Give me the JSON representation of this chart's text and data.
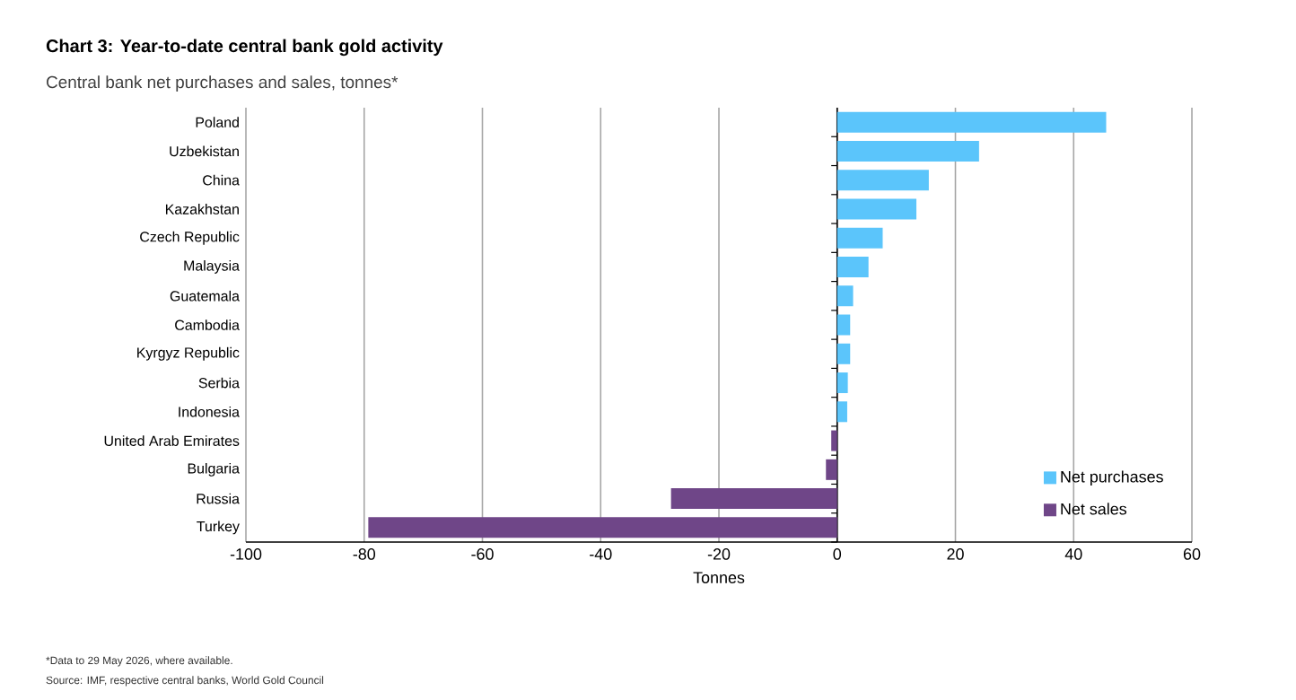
{
  "chart_data": {
    "type": "bar",
    "orientation": "horizontal",
    "title": "Chart 3: Year-to-date central bank gold activity",
    "subtitle": "Central bank net purchases and sales, tonnes*",
    "xlabel": "Tonnes",
    "categories": [
      "Poland",
      "Uzbekistan",
      "China",
      "Kazakhstan",
      "Czech Republic",
      "Malaysia",
      "Guatemala",
      "Cambodia",
      "Kyrgyz Republic",
      "Serbia",
      "Indonesia",
      "United Arab Emirates",
      "Bulgaria",
      "Russia",
      "Turkey"
    ],
    "series": [
      {
        "name": "Net purchases",
        "color": "#5bc5fb",
        "values": [
          45.5,
          24.0,
          15.5,
          13.4,
          7.7,
          5.3,
          2.7,
          2.2,
          2.2,
          1.8,
          1.7,
          null,
          null,
          null,
          null
        ]
      },
      {
        "name": "Net sales",
        "color": "#6f4688",
        "values": [
          null,
          null,
          null,
          null,
          null,
          null,
          null,
          null,
          null,
          null,
          null,
          -1.0,
          -1.9,
          -28.1,
          -79.3
        ]
      }
    ],
    "stacked": true,
    "xlim": [
      -100,
      60
    ],
    "xticks": [
      -100,
      -80,
      -60,
      -40,
      -20,
      0,
      20,
      40,
      60
    ],
    "grid": "x",
    "legend": "bottom right",
    "annotations": [
      "*Data to 29 May 2026, where available.",
      "Source: IMF, respective central banks, World Gold Council"
    ]
  }
}
